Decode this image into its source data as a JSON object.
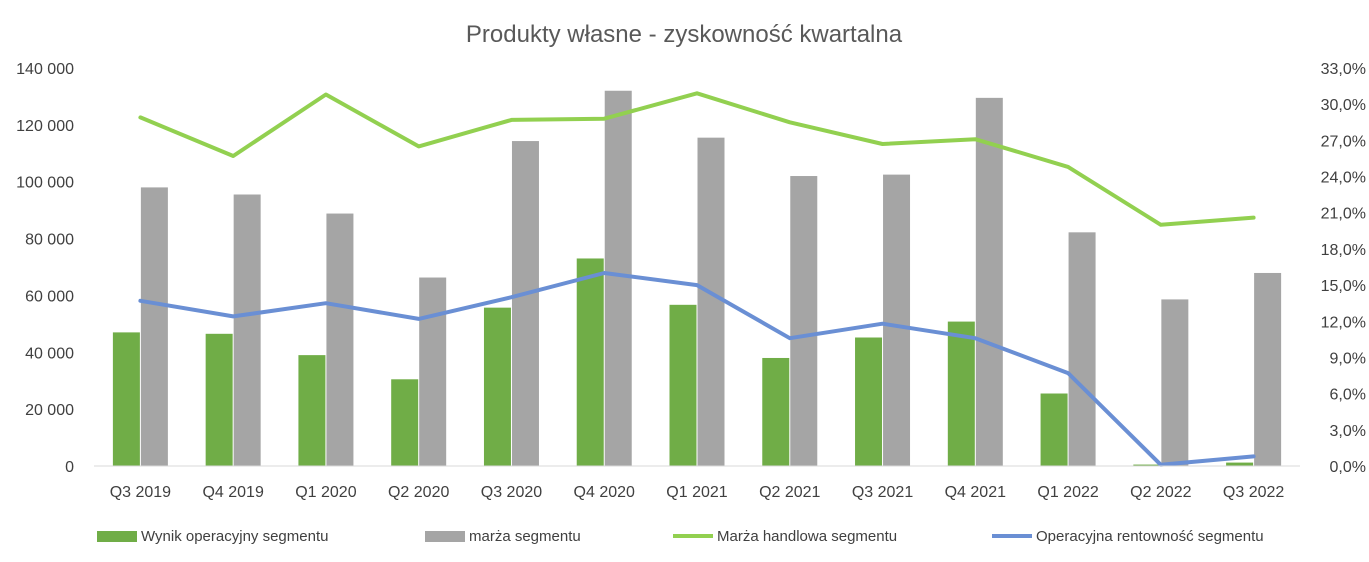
{
  "chart_data": {
    "type": "bar",
    "title": "Produkty własne - zyskowność kwartalna",
    "categories": [
      "Q3 2019",
      "Q4 2019",
      "Q1 2020",
      "Q2 2020",
      "Q3 2020",
      "Q4 2020",
      "Q1 2021",
      "Q2 2021",
      "Q3 2021",
      "Q4 2021",
      "Q1 2022",
      "Q2 2022",
      "Q3 2022"
    ],
    "y_left": {
      "min": 0,
      "max": 140000,
      "ticks": [
        0,
        20000,
        40000,
        60000,
        80000,
        100000,
        120000,
        140000
      ],
      "tick_labels": [
        "0",
        "20 000",
        "40 000",
        "60 000",
        "80 000",
        "100 000",
        "120 000",
        "140 000"
      ]
    },
    "y_right": {
      "min": 0,
      "max": 33,
      "ticks": [
        0,
        3,
        6,
        9,
        12,
        15,
        18,
        21,
        24,
        27,
        30,
        33
      ],
      "tick_labels": [
        "0,0%",
        "3,0%",
        "6,0%",
        "9,0%",
        "12,0%",
        "15,0%",
        "18,0%",
        "21,0%",
        "24,0%",
        "27,0%",
        "30,0%",
        "33,0%"
      ]
    },
    "series": [
      {
        "name": "Wynik operacyjny segmentu",
        "kind": "bar",
        "axis": "left",
        "color": "#70AD47",
        "values": [
          47000,
          46500,
          39000,
          30500,
          55700,
          73000,
          56700,
          38000,
          45200,
          50800,
          25500,
          500,
          1200
        ]
      },
      {
        "name": "marża segmentu",
        "kind": "bar",
        "axis": "left",
        "color": "#A5A5A5",
        "values": [
          98000,
          95500,
          88800,
          66300,
          114300,
          132000,
          115500,
          102000,
          102500,
          129500,
          82200,
          58600,
          67900
        ]
      },
      {
        "name": "Marża handlowa segmentu",
        "kind": "line",
        "axis": "right",
        "color": "#92D050",
        "values": [
          28.9,
          25.7,
          30.8,
          26.5,
          28.7,
          28.8,
          30.9,
          28.5,
          26.7,
          27.1,
          24.8,
          20.0,
          20.6
        ]
      },
      {
        "name": "Operacyjna rentowność segmentu",
        "kind": "line",
        "axis": "right",
        "color": "#6A8FD4",
        "values": [
          13.7,
          12.4,
          13.5,
          12.2,
          14.0,
          16.0,
          15.0,
          10.6,
          11.8,
          10.6,
          7.7,
          0.1,
          0.8
        ]
      }
    ],
    "legend_position": "bottom",
    "grid": false
  }
}
